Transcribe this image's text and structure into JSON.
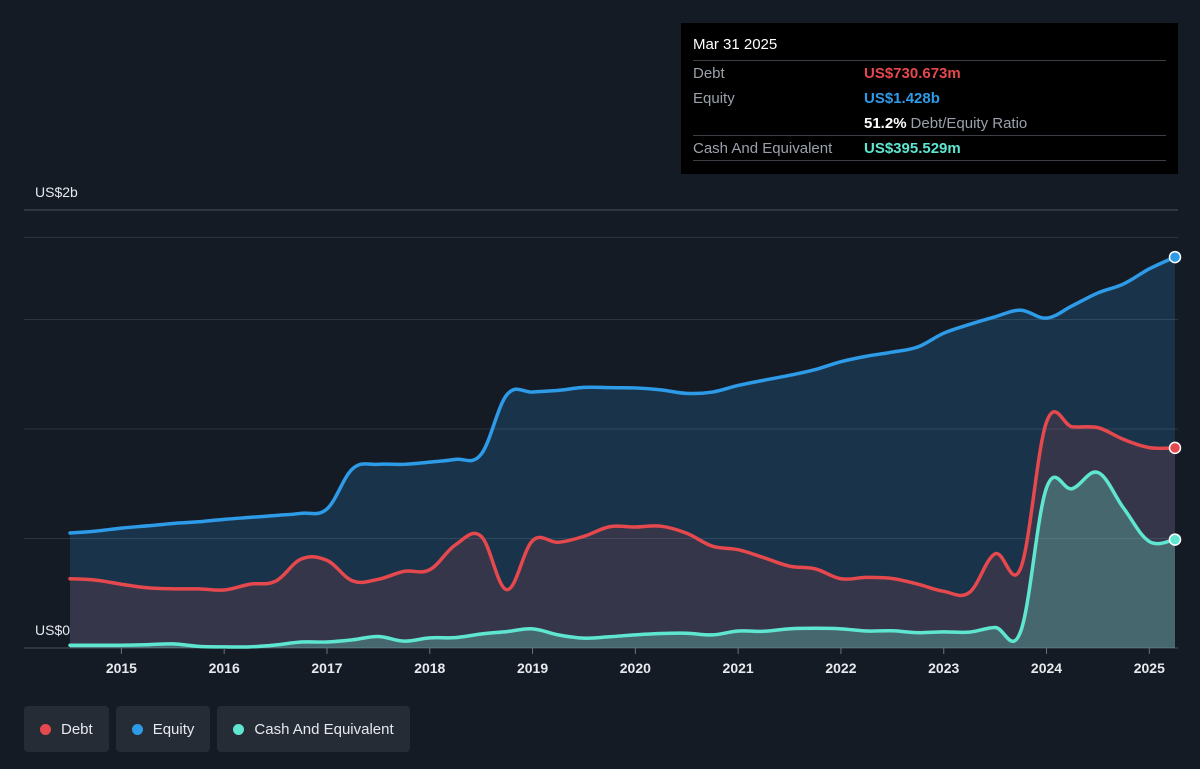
{
  "tooltip": {
    "date": "Mar 31 2025",
    "debt_label": "Debt",
    "debt_value": "US$730.673m",
    "equity_label": "Equity",
    "equity_value": "US$1.428b",
    "ratio_value": "51.2%",
    "ratio_label": "Debt/Equity Ratio",
    "cash_label": "Cash And Equivalent",
    "cash_value": "US$395.529m"
  },
  "legend": [
    {
      "label": "Debt",
      "color": "#e5484d"
    },
    {
      "label": "Equity",
      "color": "#2d9be8"
    },
    {
      "label": "Cash And Equivalent",
      "color": "#5ee6d0"
    }
  ],
  "chart_data": {
    "type": "area",
    "y_top_label": "US$2b",
    "y_bottom_label": "US$0",
    "ylim": [
      0,
      1.6
    ],
    "xlim": [
      2014.5,
      2025.25
    ],
    "x_ticks": [
      "2015",
      "2016",
      "2017",
      "2018",
      "2019",
      "2020",
      "2021",
      "2022",
      "2023",
      "2024",
      "2025"
    ],
    "series": [
      {
        "name": "Debt",
        "color": "#e5484d",
        "unit": "US$b",
        "points": [
          [
            2014.5,
            0.253
          ],
          [
            2014.75,
            0.248
          ],
          [
            2015.0,
            0.233
          ],
          [
            2015.25,
            0.22
          ],
          [
            2015.5,
            0.216
          ],
          [
            2015.75,
            0.216
          ],
          [
            2016.0,
            0.212
          ],
          [
            2016.25,
            0.233
          ],
          [
            2016.5,
            0.244
          ],
          [
            2016.75,
            0.325
          ],
          [
            2017.0,
            0.32
          ],
          [
            2017.25,
            0.245
          ],
          [
            2017.5,
            0.251
          ],
          [
            2017.75,
            0.28
          ],
          [
            2018.0,
            0.286
          ],
          [
            2018.25,
            0.377
          ],
          [
            2018.5,
            0.408
          ],
          [
            2018.75,
            0.213
          ],
          [
            2019.0,
            0.392
          ],
          [
            2019.25,
            0.386
          ],
          [
            2019.5,
            0.408
          ],
          [
            2019.75,
            0.443
          ],
          [
            2020.0,
            0.442
          ],
          [
            2020.25,
            0.445
          ],
          [
            2020.5,
            0.419
          ],
          [
            2020.75,
            0.372
          ],
          [
            2021.0,
            0.359
          ],
          [
            2021.25,
            0.33
          ],
          [
            2021.5,
            0.299
          ],
          [
            2021.75,
            0.289
          ],
          [
            2022.0,
            0.253
          ],
          [
            2022.25,
            0.258
          ],
          [
            2022.5,
            0.254
          ],
          [
            2022.75,
            0.233
          ],
          [
            2023.0,
            0.207
          ],
          [
            2023.25,
            0.203
          ],
          [
            2023.5,
            0.344
          ],
          [
            2023.75,
            0.293
          ],
          [
            2024.0,
            0.825
          ],
          [
            2024.25,
            0.808
          ],
          [
            2024.5,
            0.805
          ],
          [
            2024.75,
            0.762
          ],
          [
            2025.0,
            0.732
          ],
          [
            2025.25,
            0.731
          ]
        ]
      },
      {
        "name": "Equity",
        "color": "#2d9be8",
        "unit": "US$b",
        "points": [
          [
            2014.5,
            0.42
          ],
          [
            2014.75,
            0.427
          ],
          [
            2015.0,
            0.438
          ],
          [
            2015.25,
            0.446
          ],
          [
            2015.5,
            0.455
          ],
          [
            2015.75,
            0.461
          ],
          [
            2016.0,
            0.47
          ],
          [
            2016.25,
            0.477
          ],
          [
            2016.5,
            0.484
          ],
          [
            2016.75,
            0.492
          ],
          [
            2017.0,
            0.508
          ],
          [
            2017.25,
            0.655
          ],
          [
            2017.5,
            0.671
          ],
          [
            2017.75,
            0.671
          ],
          [
            2018.0,
            0.679
          ],
          [
            2018.25,
            0.689
          ],
          [
            2018.5,
            0.708
          ],
          [
            2018.75,
            0.925
          ],
          [
            2019.0,
            0.935
          ],
          [
            2019.25,
            0.941
          ],
          [
            2019.5,
            0.952
          ],
          [
            2019.75,
            0.951
          ],
          [
            2020.0,
            0.95
          ],
          [
            2020.25,
            0.943
          ],
          [
            2020.5,
            0.93
          ],
          [
            2020.75,
            0.935
          ],
          [
            2021.0,
            0.959
          ],
          [
            2021.25,
            0.978
          ],
          [
            2021.5,
            0.996
          ],
          [
            2021.75,
            1.017
          ],
          [
            2022.0,
            1.046
          ],
          [
            2022.25,
            1.066
          ],
          [
            2022.5,
            1.081
          ],
          [
            2022.75,
            1.1
          ],
          [
            2023.0,
            1.15
          ],
          [
            2023.25,
            1.182
          ],
          [
            2023.5,
            1.21
          ],
          [
            2023.75,
            1.234
          ],
          [
            2024.0,
            1.205
          ],
          [
            2024.25,
            1.25
          ],
          [
            2024.5,
            1.297
          ],
          [
            2024.75,
            1.33
          ],
          [
            2025.0,
            1.385
          ],
          [
            2025.25,
            1.428
          ]
        ]
      },
      {
        "name": "Cash And Equivalent",
        "color": "#5ee6d0",
        "unit": "US$b",
        "points": [
          [
            2014.5,
            0.01
          ],
          [
            2014.75,
            0.01
          ],
          [
            2015.0,
            0.01
          ],
          [
            2015.25,
            0.012
          ],
          [
            2015.5,
            0.015
          ],
          [
            2015.75,
            0.006
          ],
          [
            2016.0,
            0.004
          ],
          [
            2016.25,
            0.004
          ],
          [
            2016.5,
            0.011
          ],
          [
            2016.75,
            0.022
          ],
          [
            2017.0,
            0.022
          ],
          [
            2017.25,
            0.03
          ],
          [
            2017.5,
            0.042
          ],
          [
            2017.75,
            0.025
          ],
          [
            2018.0,
            0.037
          ],
          [
            2018.25,
            0.038
          ],
          [
            2018.5,
            0.051
          ],
          [
            2018.75,
            0.06
          ],
          [
            2019.0,
            0.07
          ],
          [
            2019.25,
            0.048
          ],
          [
            2019.5,
            0.036
          ],
          [
            2019.75,
            0.041
          ],
          [
            2020.0,
            0.048
          ],
          [
            2020.25,
            0.053
          ],
          [
            2020.5,
            0.054
          ],
          [
            2020.75,
            0.048
          ],
          [
            2021.0,
            0.062
          ],
          [
            2021.25,
            0.061
          ],
          [
            2021.5,
            0.07
          ],
          [
            2021.75,
            0.072
          ],
          [
            2022.0,
            0.07
          ],
          [
            2022.25,
            0.062
          ],
          [
            2022.5,
            0.063
          ],
          [
            2022.75,
            0.056
          ],
          [
            2023.0,
            0.059
          ],
          [
            2023.25,
            0.058
          ],
          [
            2023.5,
            0.075
          ],
          [
            2023.75,
            0.062
          ],
          [
            2024.0,
            0.585
          ],
          [
            2024.25,
            0.582
          ],
          [
            2024.5,
            0.641
          ],
          [
            2024.75,
            0.511
          ],
          [
            2025.0,
            0.389
          ],
          [
            2025.25,
            0.396
          ]
        ]
      }
    ]
  }
}
